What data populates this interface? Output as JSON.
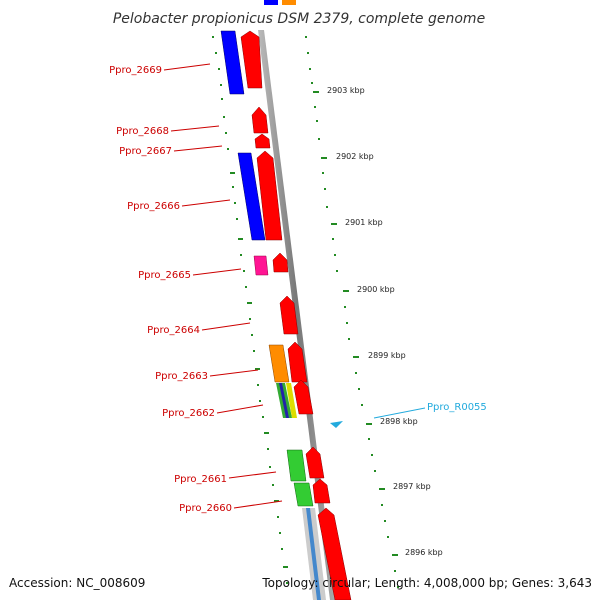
{
  "title": "Pelobacter propionicus DSM 2379, complete genome",
  "footer": {
    "accession": "Accession: NC_008609",
    "topology": "Topology: circular; Length: 4,008,000 bp; Genes: 3,643"
  },
  "gene_labels": [
    "Ppro_2669",
    "Ppro_2668",
    "Ppro_2667",
    "Ppro_2666",
    "Ppro_2665",
    "Ppro_2664",
    "Ppro_2663",
    "Ppro_2662",
    "Ppro_2661",
    "Ppro_2660"
  ],
  "rna_label": "Ppro_R0055",
  "scale_labels": [
    "2903 kbp",
    "2902 kbp",
    "2901 kbp",
    "2900 kbp",
    "2899 kbp",
    "2898 kbp",
    "2897 kbp",
    "2896 kbp"
  ],
  "colors": {
    "forward_gene": "#ff0000",
    "cog_blue": "#0000ff",
    "cog_orange": "#ff8c00",
    "cog_magenta": "#ff1493",
    "cog_green": "#33cc33",
    "rna": "#22aadd",
    "backbone": "#888888",
    "ticks": "#228b22"
  }
}
